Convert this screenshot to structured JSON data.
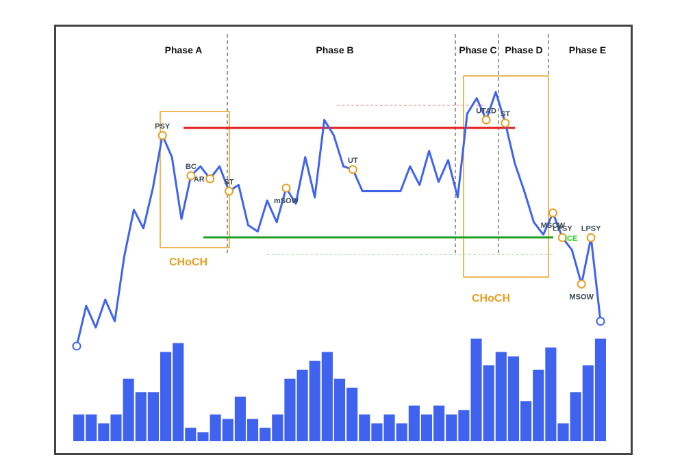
{
  "chart_data": {
    "type": "line",
    "phases": [
      "Phase A",
      "Phase B",
      "Phase C",
      "Phase D",
      "Phase E"
    ],
    "price_series": [
      12,
      25,
      18,
      27,
      20,
      41,
      56,
      50,
      63,
      80,
      73,
      53,
      67,
      70,
      66,
      70,
      62,
      64,
      51,
      49,
      59,
      52,
      63,
      58,
      73,
      60,
      85,
      80,
      70,
      69,
      62,
      62,
      62,
      62,
      62,
      70,
      64,
      75,
      65,
      72,
      60,
      87,
      92,
      85,
      94,
      84,
      71,
      62,
      52,
      48,
      55,
      47,
      43,
      32,
      47,
      20
    ],
    "volume_series": [
      6,
      6,
      4,
      6,
      14,
      11,
      11,
      20,
      22,
      3,
      2,
      6,
      5,
      10,
      5,
      3,
      6,
      14,
      16,
      18,
      20,
      14,
      12,
      6,
      4,
      6,
      4,
      8,
      6,
      8,
      6,
      7,
      23,
      17,
      20,
      19,
      9,
      16,
      21,
      4,
      11,
      17,
      23
    ],
    "markers": [
      {
        "label": "PSY",
        "index": 9
      },
      {
        "label": "BC",
        "index": 12
      },
      {
        "label": "AR",
        "index": 14
      },
      {
        "label": "ST",
        "index": 16
      },
      {
        "label": "mSOW",
        "index": 22
      },
      {
        "label": "UT",
        "index": 29
      },
      {
        "label": "UTAD",
        "index": 43
      },
      {
        "label": "ST",
        "index": 45
      },
      {
        "label": "MSOW",
        "index": 50
      },
      {
        "label": "LPSY",
        "index": 51
      },
      {
        "label": "MSOW",
        "index": 53
      },
      {
        "label": "LPSY",
        "index": 54
      }
    ],
    "annotations": {
      "choch_left": "CHoCH",
      "choch_right": "CHoCH",
      "ice": "ICE"
    },
    "colors": {
      "price_line": "#3f63ee",
      "volume_bars": "#3f63ee",
      "resistance": "#e21b1b",
      "support": "#1f9d1f",
      "marker_ring": "#e6a020",
      "choch_box": "#e6a020",
      "dashed_ref_red": "#f08080",
      "dashed_ref_green": "#88d888",
      "ice_text": "#2fd02f"
    }
  }
}
